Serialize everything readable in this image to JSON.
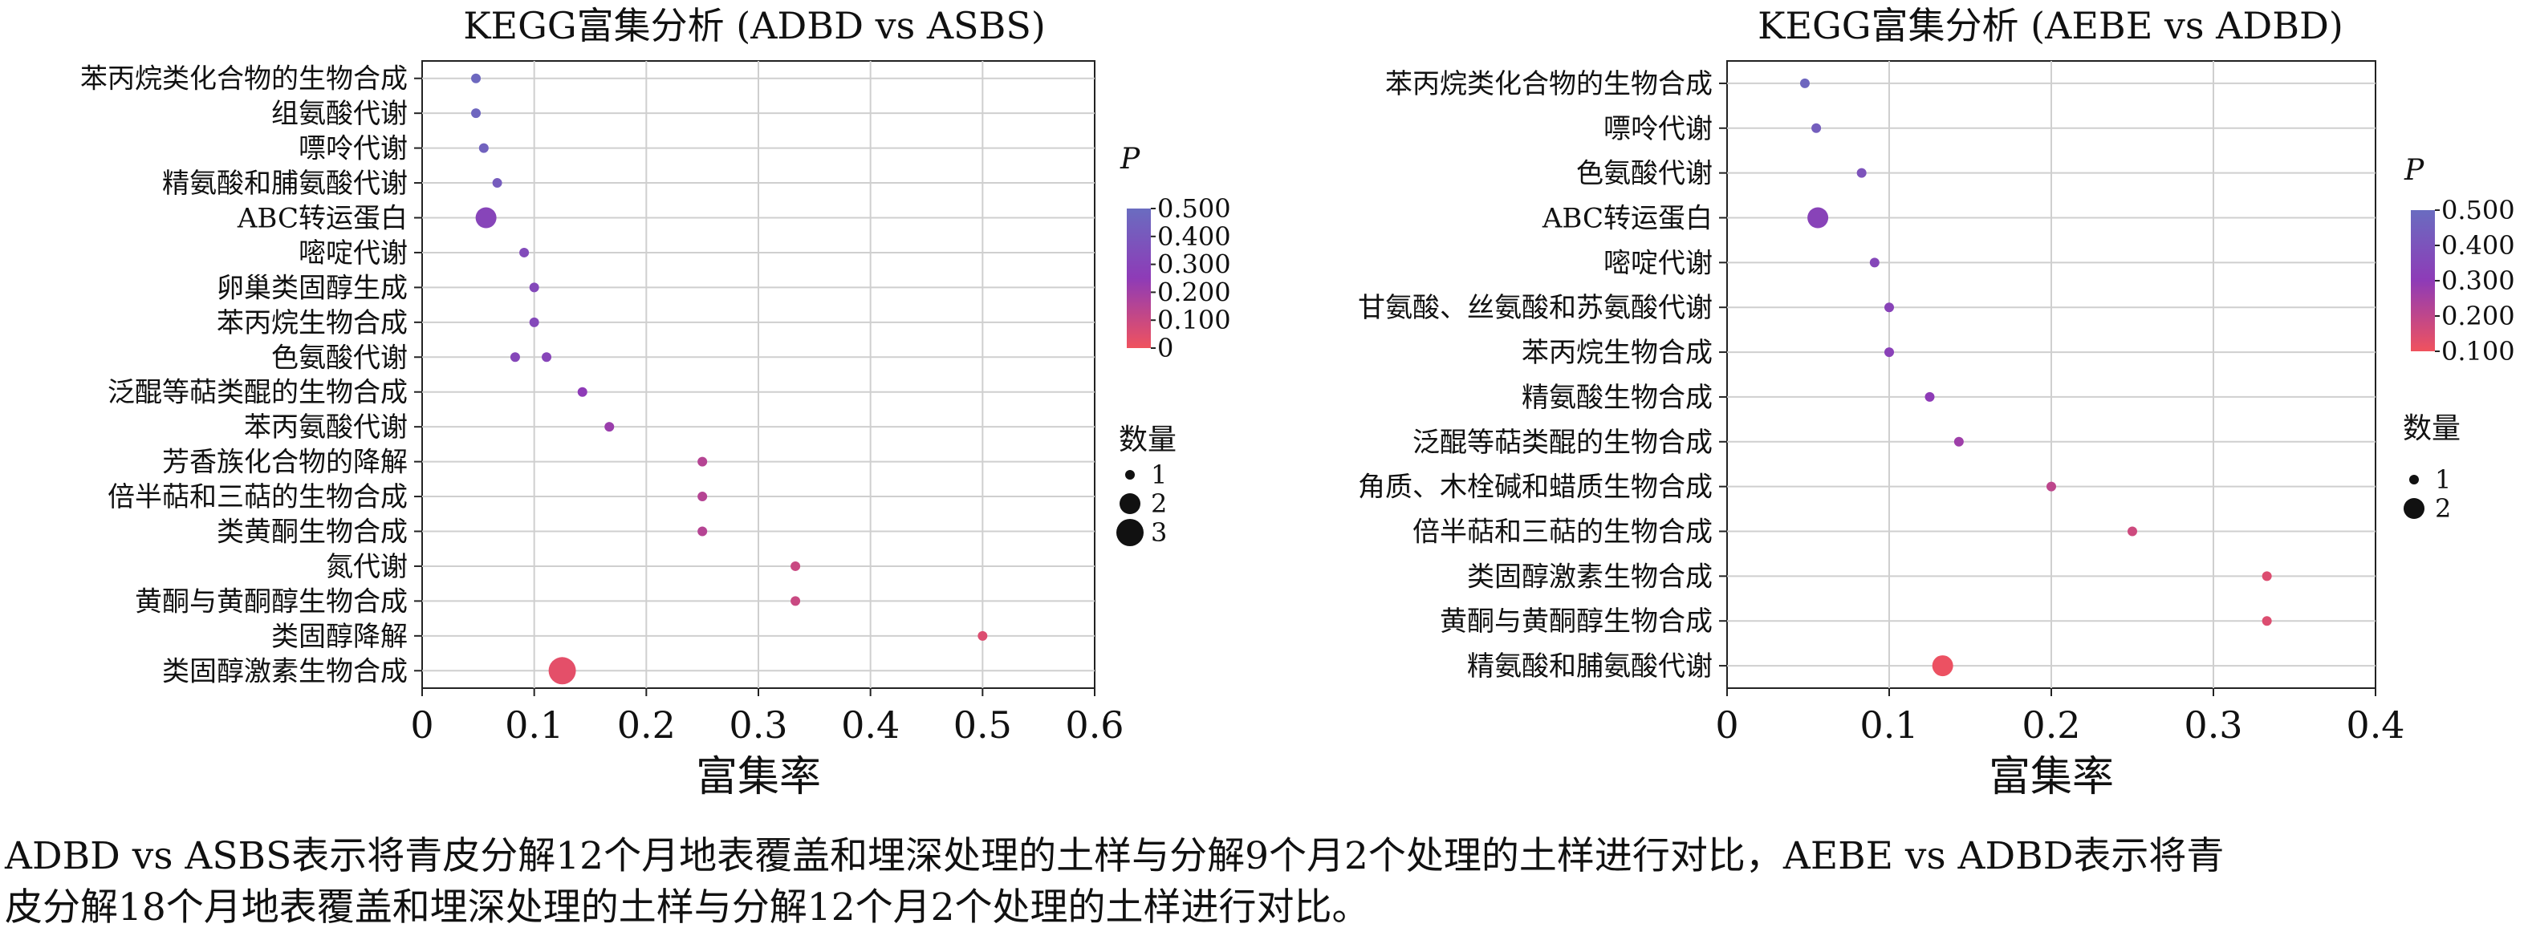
{
  "chart_data": [
    {
      "type": "scatter",
      "title": "KEGG富集分析 (ADBD vs ASBS)",
      "xlabel": "富集率",
      "ylabel": "",
      "xlim": [
        0,
        0.6
      ],
      "xticks": [
        "0",
        "0.1",
        "0.2",
        "0.3",
        "0.4",
        "0.5",
        "0.6"
      ],
      "grid": true,
      "color_legend": {
        "title": "P",
        "ticks": [
          "0.500",
          "0.400",
          "0.300",
          "0.200",
          "0.100",
          "0"
        ],
        "range": [
          0,
          0.5
        ],
        "high_color": "#6a6cc0",
        "mid_color": "#8e3bb7",
        "low_color": "#f0525e"
      },
      "size_legend": {
        "title": "数量",
        "labels": [
          "1",
          "2",
          "3"
        ],
        "values": [
          1,
          2,
          3
        ]
      },
      "categories": [
        "苯丙烷类化合物的生物合成",
        "组氨酸代谢",
        "嘌呤代谢",
        "精氨酸和脯氨酸代谢",
        "ABC转运蛋白",
        "嘧啶代谢",
        "卵巢类固醇生成",
        "苯丙烷生物合成",
        "色氨酸代谢",
        "泛醌等萜类醌的生物合成",
        "苯丙氨酸代谢",
        "芳香族化合物的降解",
        "倍半萜和三萜的生物合成",
        "类黄酮生物合成",
        "氮代谢",
        "黄酮与黄酮醇生物合成",
        "类固醇降解",
        "类固醇激素生物合成"
      ],
      "points": [
        {
          "category": "苯丙烷类化合物的生物合成",
          "x": 0.048,
          "count": 1,
          "p": 0.48
        },
        {
          "category": "组氨酸代谢",
          "x": 0.048,
          "count": 1,
          "p": 0.47
        },
        {
          "category": "嘌呤代谢",
          "x": 0.055,
          "count": 1,
          "p": 0.45
        },
        {
          "category": "精氨酸和脯氨酸代谢",
          "x": 0.067,
          "count": 1,
          "p": 0.42
        },
        {
          "category": "ABC转运蛋白",
          "x": 0.057,
          "count": 2,
          "p": 0.3
        },
        {
          "category": "嘧啶代谢",
          "x": 0.091,
          "count": 1,
          "p": 0.33
        },
        {
          "category": "卵巢类固醇生成",
          "x": 0.1,
          "count": 1,
          "p": 0.32
        },
        {
          "category": "苯丙烷生物合成",
          "x": 0.1,
          "count": 1,
          "p": 0.32
        },
        {
          "category": "色氨酸代谢",
          "x": 0.083,
          "count": 1,
          "p": 0.31
        },
        {
          "category": "色氨酸代谢",
          "x": 0.111,
          "count": 1,
          "p": 0.3
        },
        {
          "category": "泛醌等萜类醌的生物合成",
          "x": 0.143,
          "count": 1,
          "p": 0.25
        },
        {
          "category": "苯丙氨酸代谢",
          "x": 0.167,
          "count": 1,
          "p": 0.22
        },
        {
          "category": "芳香族化合物的降解",
          "x": 0.25,
          "count": 1,
          "p": 0.15
        },
        {
          "category": "倍半萜和三萜的生物合成",
          "x": 0.25,
          "count": 1,
          "p": 0.15
        },
        {
          "category": "类黄酮生物合成",
          "x": 0.25,
          "count": 1,
          "p": 0.15
        },
        {
          "category": "氮代谢",
          "x": 0.333,
          "count": 1,
          "p": 0.1
        },
        {
          "category": "黄酮与黄酮醇生物合成",
          "x": 0.333,
          "count": 1,
          "p": 0.1
        },
        {
          "category": "类固醇降解",
          "x": 0.5,
          "count": 1,
          "p": 0.05
        },
        {
          "category": "类固醇激素生物合成",
          "x": 0.125,
          "count": 3,
          "p": 0.03
        }
      ]
    },
    {
      "type": "scatter",
      "title": "KEGG富集分析 (AEBE vs ADBD)",
      "xlabel": "富集率",
      "ylabel": "",
      "xlim": [
        0,
        0.4
      ],
      "xticks": [
        "0",
        "0.1",
        "0.2",
        "0.3",
        "0.4"
      ],
      "grid": true,
      "color_legend": {
        "title": "P",
        "ticks": [
          "0.500",
          "0.400",
          "0.300",
          "0.200",
          "0.100"
        ],
        "range": [
          0.05,
          0.55
        ],
        "high_color": "#6a6cc0",
        "mid_color": "#8e3bb7",
        "low_color": "#f0525e"
      },
      "size_legend": {
        "title": "数量",
        "labels": [
          "1",
          "2"
        ],
        "values": [
          1,
          2
        ]
      },
      "categories": [
        "苯丙烷类化合物的生物合成",
        "嘌呤代谢",
        "色氨酸代谢",
        "ABC转运蛋白",
        "嘧啶代谢",
        "甘氨酸、丝氨酸和苏氨酸代谢",
        "苯丙烷生物合成",
        "精氨酸生物合成",
        "泛醌等萜类醌的生物合成",
        "角质、木栓碱和蜡质生物合成",
        "倍半萜和三萜的生物合成",
        "类固醇激素生物合成",
        "黄酮与黄酮醇生物合成",
        "精氨酸和脯氨酸代谢"
      ],
      "points": [
        {
          "category": "苯丙烷类化合物的生物合成",
          "x": 0.048,
          "count": 1,
          "p": 0.52
        },
        {
          "category": "嘌呤代谢",
          "x": 0.055,
          "count": 1,
          "p": 0.48
        },
        {
          "category": "色氨酸代谢",
          "x": 0.083,
          "count": 1,
          "p": 0.42
        },
        {
          "category": "ABC转运蛋白",
          "x": 0.056,
          "count": 2,
          "p": 0.34
        },
        {
          "category": "嘧啶代谢",
          "x": 0.091,
          "count": 1,
          "p": 0.36
        },
        {
          "category": "甘氨酸、丝氨酸和苏氨酸代谢",
          "x": 0.1,
          "count": 1,
          "p": 0.34
        },
        {
          "category": "苯丙烷生物合成",
          "x": 0.1,
          "count": 1,
          "p": 0.33
        },
        {
          "category": "精氨酸生物合成",
          "x": 0.125,
          "count": 1,
          "p": 0.3
        },
        {
          "category": "泛醌等萜类醌的生物合成",
          "x": 0.143,
          "count": 1,
          "p": 0.26
        },
        {
          "category": "角质、木栓碱和蜡质生物合成",
          "x": 0.2,
          "count": 1,
          "p": 0.18
        },
        {
          "category": "倍半萜和三萜的生物合成",
          "x": 0.25,
          "count": 1,
          "p": 0.14
        },
        {
          "category": "类固醇激素生物合成",
          "x": 0.333,
          "count": 1,
          "p": 0.1
        },
        {
          "category": "黄酮与黄酮醇生物合成",
          "x": 0.333,
          "count": 1,
          "p": 0.1
        },
        {
          "category": "精氨酸和脯氨酸代谢",
          "x": 0.133,
          "count": 2,
          "p": 0.06
        }
      ]
    }
  ],
  "caption": [
    "ADBD vs ASBS表示将青皮分解12个月地表覆盖和埋深处理的土样与分解9个月2个处理的土样进行对比，AEBE vs ADBD表示将青",
    "皮分解18个月地表覆盖和埋深处理的土样与分解12个月2个处理的土样进行对比。"
  ]
}
